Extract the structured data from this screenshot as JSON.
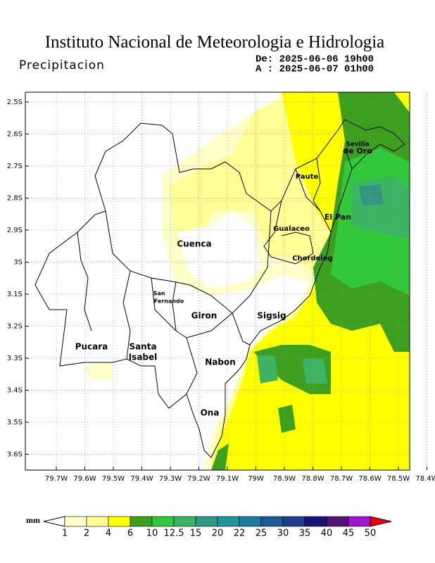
{
  "header": {
    "title": "Instituto Nacional de Meteorologia e Hidrologia",
    "subtitle": "Precipitacion",
    "from": "De: 2025-06-06 19h00",
    "to": "A : 2025-06-07 01h00"
  },
  "map": {
    "lat_ticks": [
      "2.5S",
      "2.6S",
      "2.7S",
      "2.8S",
      "2.9S",
      "3S",
      "3.1S",
      "3.2S",
      "3.3S",
      "3.4S",
      "3.5S",
      "3.6S"
    ],
    "lon_ticks": [
      "79.7W",
      "79.6W",
      "79.5W",
      "79.4W",
      "79.3W",
      "79.2W",
      "79.1W",
      "79W",
      "78.9W",
      "78.8W",
      "78.7W",
      "78.6W",
      "78.5W",
      "78.4W"
    ],
    "places": [
      "Sevilla",
      "de Oro",
      "Paute",
      "El Pan",
      "Gualaceo",
      "Cuenca",
      "Chordeleg",
      "San",
      "Fernando",
      "Giron",
      "Sigsig",
      "Pucara",
      "Santa",
      "Isabel",
      "Nabon",
      "Ona"
    ]
  },
  "colorbar": {
    "unit": "mm",
    "labels": [
      "1",
      "2",
      "4",
      "6",
      "10",
      "12.5",
      "15",
      "20",
      "22",
      "25",
      "30",
      "35",
      "40",
      "45",
      "50"
    ],
    "colors": [
      "#ffffc8",
      "#ffff96",
      "#ffff00",
      "#3ca01e",
      "#32c83c",
      "#3cb464",
      "#329682",
      "#1e96a0",
      "#1e78a0",
      "#1e5a96",
      "#1e3c8c",
      "#141478",
      "#501478",
      "#a014d2"
    ],
    "under_color": "#ffffff",
    "over_color": "#f00000"
  }
}
